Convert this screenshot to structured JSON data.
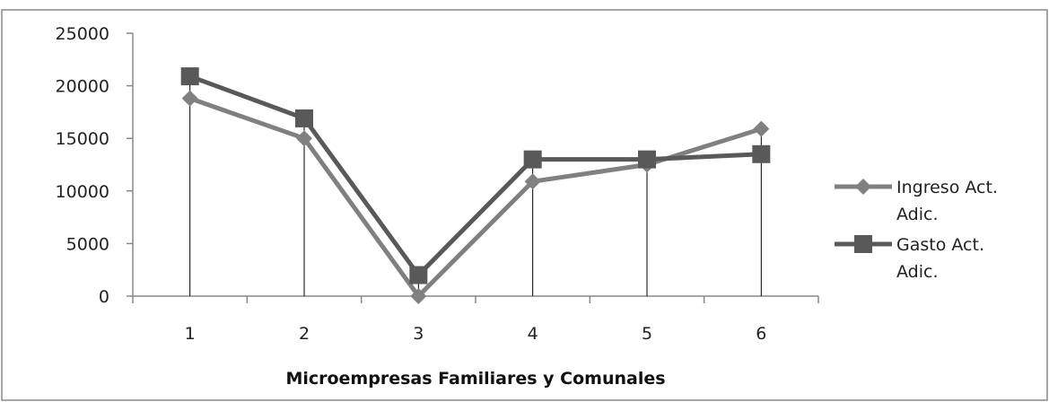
{
  "chart_data": {
    "type": "line",
    "title": "",
    "xlabel": "Microempresas Familiares y Comunales",
    "ylabel": "",
    "categories": [
      "1",
      "2",
      "3",
      "4",
      "5",
      "6"
    ],
    "ylim": [
      0,
      25000
    ],
    "yticks": [
      "0",
      "5000",
      "10000",
      "15000",
      "20000",
      "25000"
    ],
    "grid": false,
    "legend": "right",
    "series": [
      {
        "name_lines": [
          "Ingreso Act.",
          "Adic."
        ],
        "values": [
          18800,
          15000,
          0,
          10900,
          12500,
          15900
        ],
        "color": "#808080",
        "marker": "diamond"
      },
      {
        "name_lines": [
          "Gasto Act.",
          "Adic."
        ],
        "values": [
          20900,
          16900,
          2000,
          13000,
          13000,
          13500
        ],
        "color": "#595959",
        "marker": "square"
      }
    ]
  }
}
